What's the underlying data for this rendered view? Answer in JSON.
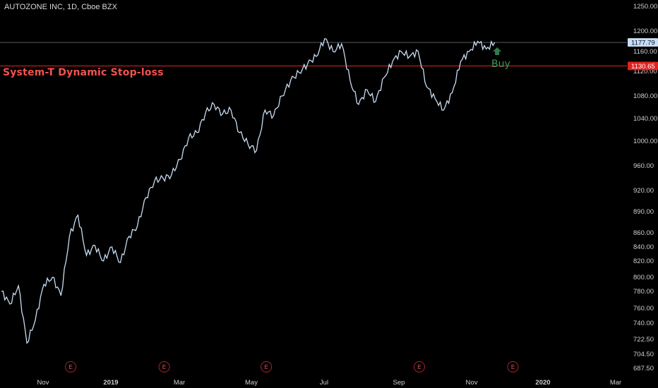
{
  "header": {
    "title": "AUTOZONE INC, 1D, Cboe BZX"
  },
  "annotations": {
    "stop_label": "System-T Dynamic Stop-loss",
    "buy_label": "Buy",
    "earnings_marker": "E"
  },
  "colors": {
    "price_line": "#c9ddf3",
    "stop_line": "#e0231f",
    "buy_arrow": "#2e7d4a",
    "current_price_tag_bg": "#c9ddf3",
    "stop_tag_bg": "#e0231f",
    "background": "#000000"
  },
  "chart_data": {
    "type": "line",
    "title": "AUTOZONE INC, 1D, Cboe BZX",
    "y_axis_ticks": [
      1250,
      1200,
      1160,
      1120,
      1080,
      1040,
      1000,
      960,
      920,
      890,
      860,
      840,
      820,
      800,
      780,
      760,
      740,
      722.5,
      704.5,
      687.5
    ],
    "y_tick_labels": [
      "1250.00",
      "1200.00",
      "1160.00",
      "1120.00",
      "1080.00",
      "1040.00",
      "1000.00",
      "960.00",
      "920.00",
      "890.00",
      "860.00",
      "840.00",
      "820.00",
      "800.00",
      "780.00",
      "760.00",
      "740.00",
      "722.50",
      "704.50",
      "687.50"
    ],
    "x_tick_labels": [
      "Nov",
      "2019",
      "Mar",
      "May",
      "Jul",
      "Sep",
      "Nov",
      "2020",
      "Mar"
    ],
    "current_price": 1177.79,
    "current_price_label": "1177.79",
    "stop_loss": 1130.65,
    "stop_loss_label": "1130.65",
    "earnings_dates": [
      "2018-12-11",
      "2019-02-26",
      "2019-05-21",
      "2019-09-24",
      "2019-12-10"
    ],
    "series": [
      {
        "dates": [
          "2018-10-15",
          "2018-10-22",
          "2018-10-29",
          "2018-11-05",
          "2018-11-12",
          "2018-11-19",
          "2018-11-26",
          "2018-12-03",
          "2018-12-10",
          "2018-12-17",
          "2018-12-24",
          "2018-12-31",
          "2019-01-07",
          "2019-01-14",
          "2019-01-21",
          "2019-01-28",
          "2019-02-04",
          "2019-02-11",
          "2019-02-18",
          "2019-02-25",
          "2019-03-04",
          "2019-03-11",
          "2019-03-18",
          "2019-03-25",
          "2019-04-01",
          "2019-04-08",
          "2019-04-15",
          "2019-04-22",
          "2019-04-29",
          "2019-05-06",
          "2019-05-13",
          "2019-05-20",
          "2019-05-27",
          "2019-06-03",
          "2019-06-10",
          "2019-06-17",
          "2019-06-24",
          "2019-07-01",
          "2019-07-08",
          "2019-07-15",
          "2019-07-22",
          "2019-07-29",
          "2019-08-05",
          "2019-08-12",
          "2019-08-19",
          "2019-08-26",
          "2019-09-02",
          "2019-09-09",
          "2019-09-16",
          "2019-09-23",
          "2019-09-30",
          "2019-10-07",
          "2019-10-14",
          "2019-10-21",
          "2019-10-28",
          "2019-11-04",
          "2019-11-11",
          "2019-11-18",
          "2019-11-25"
        ],
        "values": [
          780,
          765,
          788,
          718,
          745,
          790,
          800,
          775,
          855,
          885,
          828,
          842,
          820,
          840,
          818,
          855,
          870,
          910,
          935,
          940,
          945,
          970,
          1005,
          1015,
          1050,
          1065,
          1048,
          1055,
          1015,
          995,
          985,
          1055,
          1045,
          1080,
          1105,
          1118,
          1135,
          1150,
          1185,
          1160,
          1175,
          1105,
          1065,
          1090,
          1070,
          1110,
          1140,
          1160,
          1150,
          1160,
          1095,
          1075,
          1055,
          1085,
          1140,
          1160,
          1180,
          1165,
          1177.79
        ]
      }
    ],
    "buy_signal": {
      "date": "2019-11-27",
      "value": 1150
    }
  }
}
